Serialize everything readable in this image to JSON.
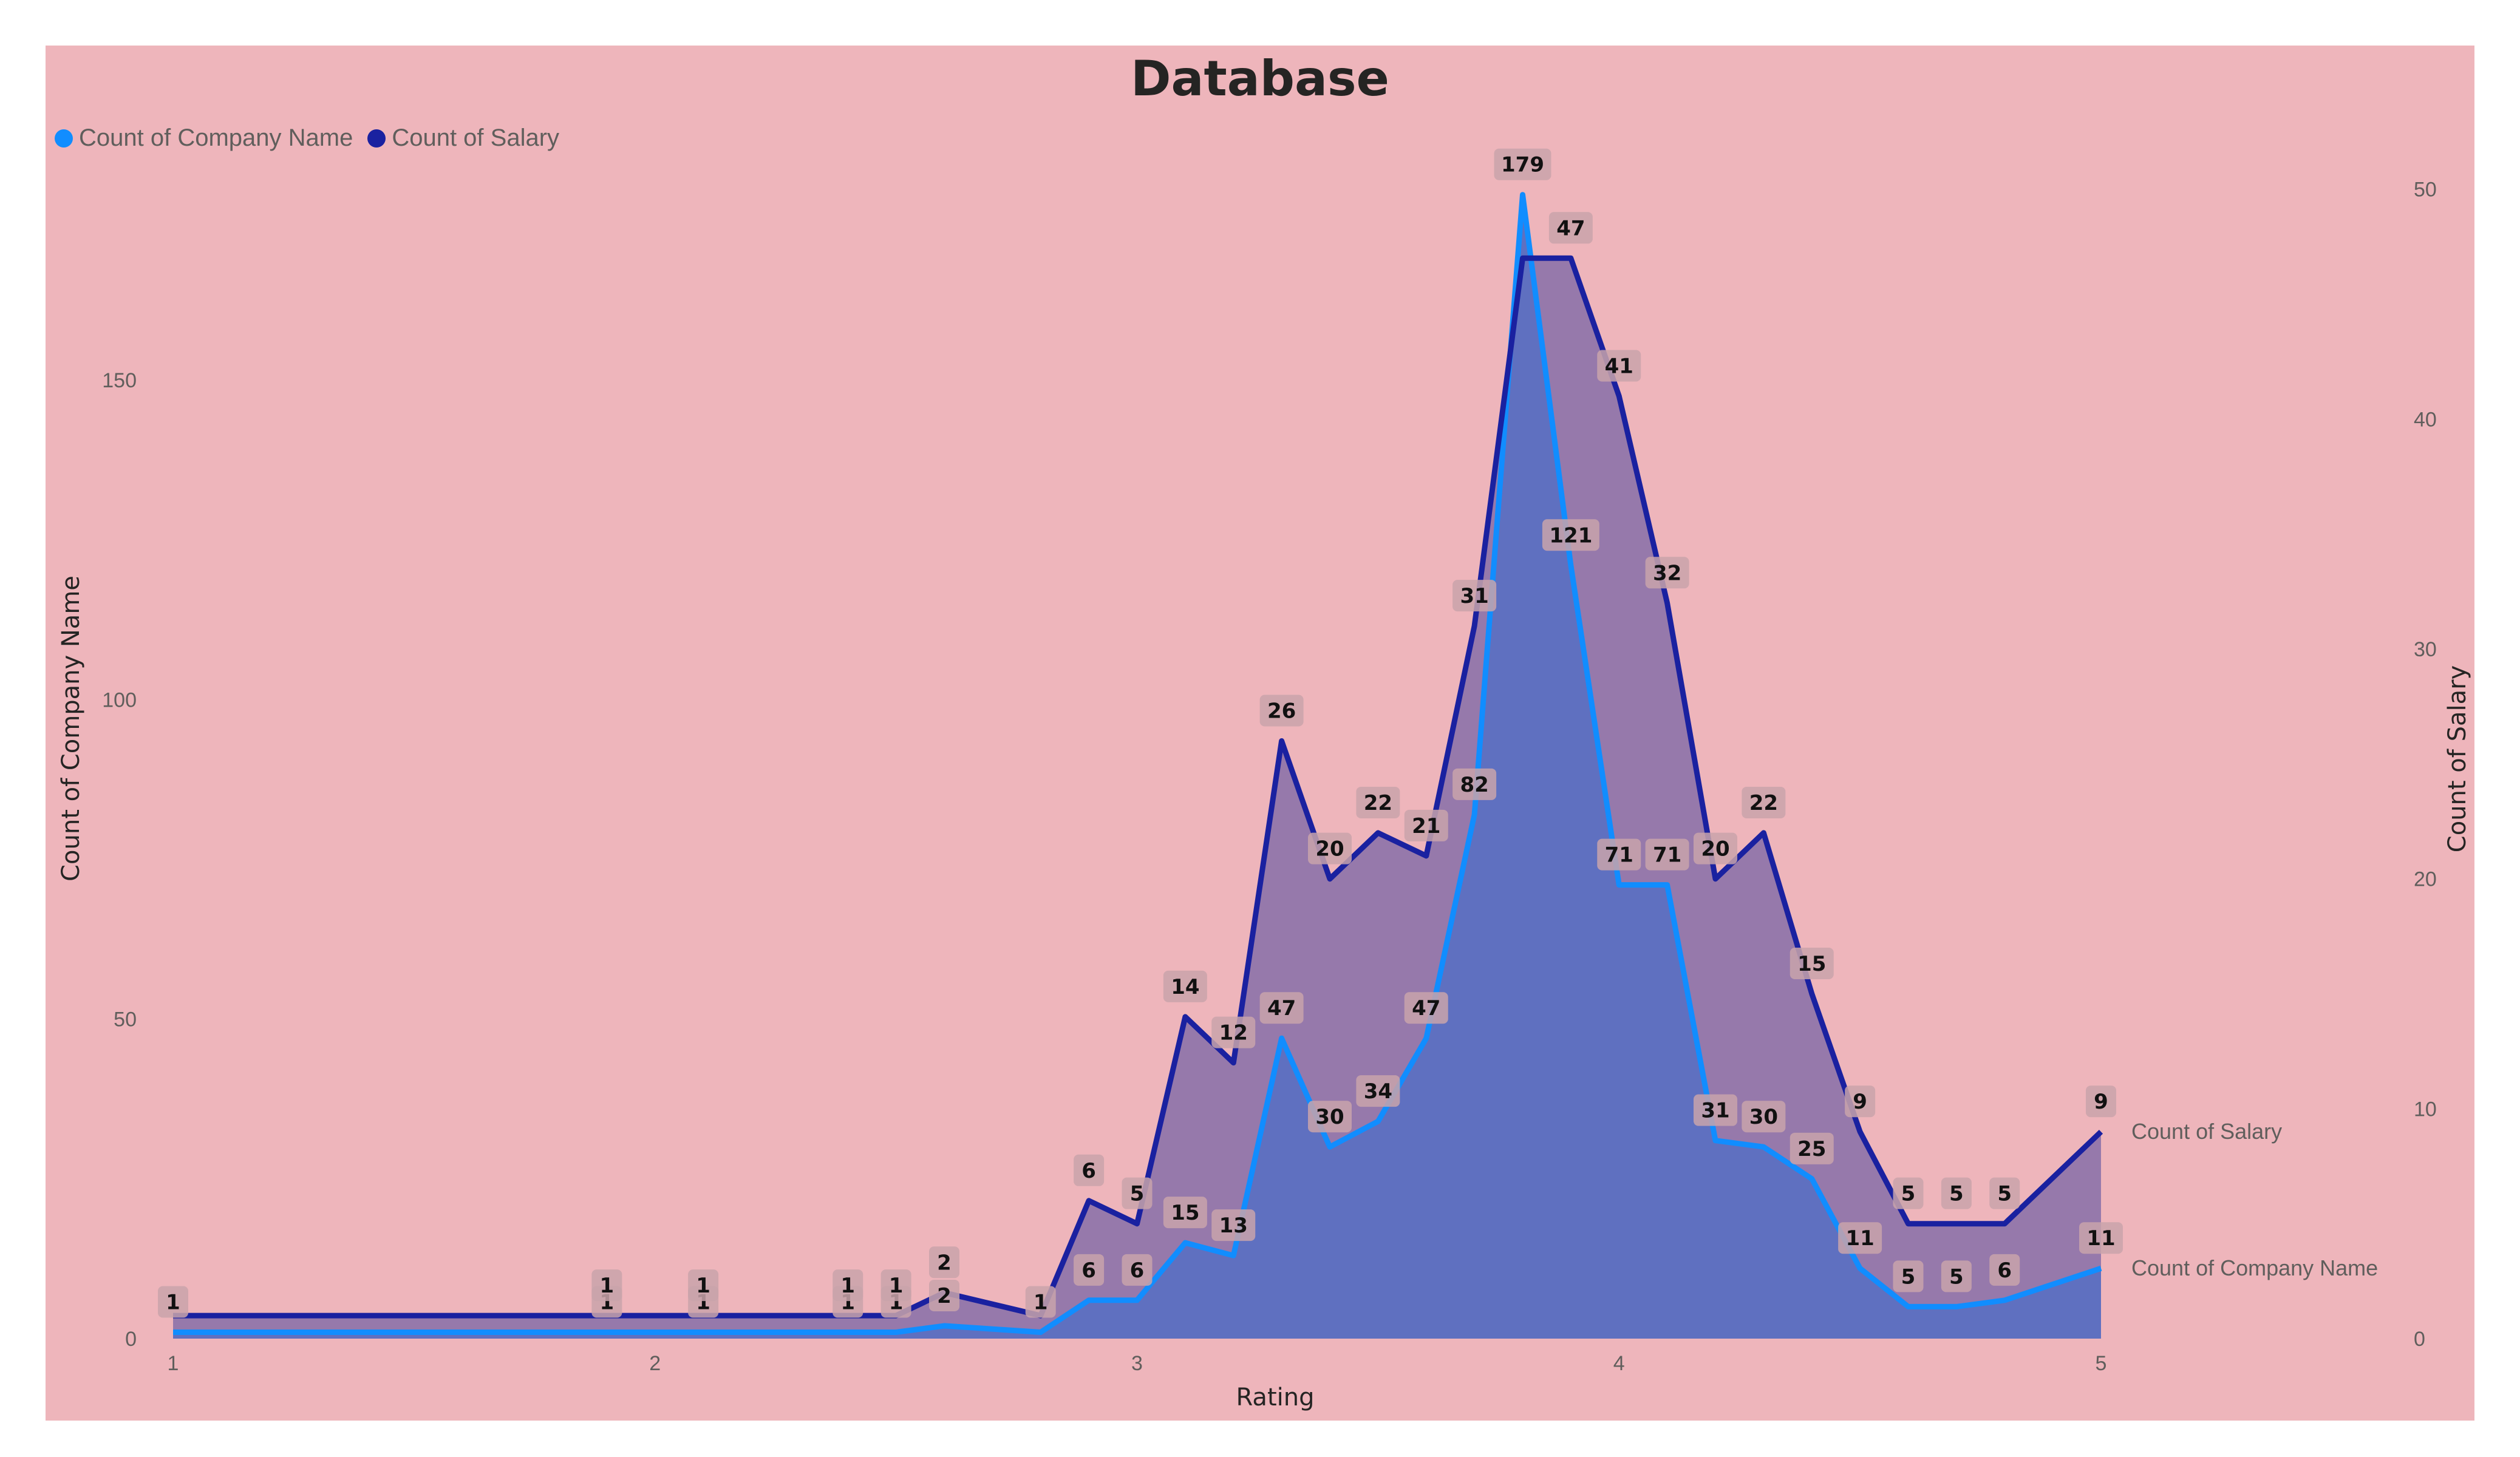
{
  "chart_data": {
    "type": "area",
    "title": "Database",
    "xlabel": "Rating",
    "ylabel_left": "Count of Company Name",
    "ylabel_right": "Count of Salary",
    "xlim": [
      1,
      5
    ],
    "ylim_left": [
      0,
      180
    ],
    "ylim_right": [
      0,
      50
    ],
    "x_ticks": [
      "1",
      "2",
      "3",
      "4",
      "5"
    ],
    "y_left_ticks": [
      "0",
      "50",
      "100",
      "150"
    ],
    "y_right_ticks": [
      "0",
      "10",
      "20",
      "30",
      "40",
      "50"
    ],
    "legend_position": "top-left",
    "grid": false,
    "x": [
      1,
      1.9,
      2.1,
      2.4,
      2.5,
      2.6,
      2.8,
      2.9,
      3.0,
      3.1,
      3.2,
      3.3,
      3.4,
      3.5,
      3.6,
      3.7,
      3.8,
      3.9,
      4.0,
      4.1,
      4.2,
      4.3,
      4.4,
      4.5,
      4.6,
      4.7,
      4.8,
      5.0
    ],
    "series": [
      {
        "name": "Count of Company Name",
        "axis": "left",
        "color": "#118dff",
        "values": [
          1,
          1,
          1,
          1,
          1,
          2,
          1,
          6,
          6,
          15,
          13,
          47,
          30,
          34,
          47,
          82,
          179,
          121,
          71,
          71,
          31,
          30,
          25,
          11,
          5,
          5,
          6,
          11
        ],
        "labels": [
          "1",
          "1",
          "1",
          "1",
          "1",
          "2",
          "1",
          "6",
          "6",
          "15",
          "13",
          "47",
          "30",
          "34",
          "47",
          "82",
          "179",
          "121",
          "71",
          "71",
          "31",
          "30",
          "25",
          "11",
          "5",
          "5",
          "6",
          "11"
        ]
      },
      {
        "name": "Count of Salary",
        "axis": "right",
        "color": "#1a21a0",
        "values": [
          1,
          1,
          1,
          1,
          1,
          2,
          1,
          6,
          5,
          14,
          12,
          26,
          20,
          22,
          21,
          31,
          47,
          47,
          41,
          32,
          20,
          22,
          15,
          9,
          5,
          5,
          5,
          9
        ],
        "labels": [
          "",
          "1",
          "1",
          "1",
          "1",
          "2",
          "",
          "6",
          "5",
          "14",
          "12",
          "26",
          "20",
          "22",
          "21",
          "31",
          "",
          "47",
          "41",
          "32",
          "20",
          "22",
          "15",
          "9",
          "5",
          "5",
          "5",
          "9"
        ]
      }
    ]
  },
  "colors": {
    "background": "#eeb5bb",
    "company_line": "#118dff",
    "salary_line": "#1a21a0",
    "company_fill": "#5f70c0",
    "salary_fill": "#9679ab",
    "label_box": "#c9a3aa"
  }
}
